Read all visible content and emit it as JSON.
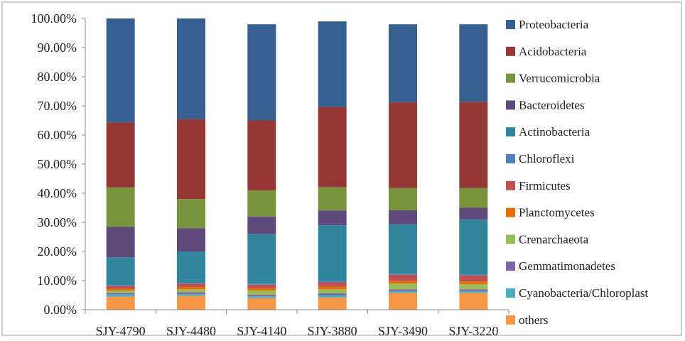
{
  "chart_data": {
    "type": "bar",
    "stacked": true,
    "percent": true,
    "categories": [
      "SJY-4790",
      "SJY-4480",
      "SJY-4140",
      "SJY-3880",
      "SJY-3490",
      "SJY-3220"
    ],
    "ylim": [
      0,
      100
    ],
    "yticks": [
      "0.00%",
      "10.00%",
      "20.00%",
      "30.00%",
      "40.00%",
      "50.00%",
      "60.00%",
      "70.00%",
      "80.00%",
      "90.00%",
      "100.00%"
    ],
    "legend_position": "right",
    "series": [
      {
        "name": "others",
        "color": "#F79646",
        "values": [
          4.5,
          4.8,
          4.0,
          4.2,
          5.8,
          5.8
        ]
      },
      {
        "name": "Cyanobacteria/Chloroplast",
        "color": "#4BACC6",
        "values": [
          0.8,
          0.6,
          0.6,
          0.8,
          0.6,
          0.6
        ]
      },
      {
        "name": "Gemmatimonadetes",
        "color": "#8064A2",
        "values": [
          0.5,
          0.6,
          0.5,
          0.6,
          0.6,
          0.6
        ]
      },
      {
        "name": "Crenarchaeota",
        "color": "#9BBB59",
        "values": [
          0.8,
          1.0,
          1.5,
          1.4,
          2.0,
          1.8
        ]
      },
      {
        "name": "Planctomycetes",
        "color": "#E46C0A",
        "values": [
          0.6,
          0.8,
          0.8,
          0.9,
          0.9,
          0.9
        ]
      },
      {
        "name": "Firmicutes",
        "color": "#C0504D",
        "values": [
          1.0,
          1.2,
          1.2,
          1.5,
          2.1,
          2.1
        ]
      },
      {
        "name": "Chloroflexi",
        "color": "#4F81BD",
        "values": [
          0.3,
          0.2,
          0.4,
          0.4,
          0.4,
          0.4
        ]
      },
      {
        "name": "Actinobacteria",
        "color": "#31859C",
        "values": [
          9.5,
          10.8,
          17.0,
          19.2,
          16.9,
          18.8
        ]
      },
      {
        "name": "Bacteroidetes",
        "color": "#604A7B",
        "values": [
          10.5,
          8.0,
          6.0,
          5.1,
          4.9,
          4.0
        ]
      },
      {
        "name": "Verrucomicrobia",
        "color": "#77933C",
        "values": [
          13.5,
          10.0,
          9.0,
          8.0,
          7.6,
          6.8
        ]
      },
      {
        "name": "Acidobacteria",
        "color": "#953735",
        "values": [
          22.3,
          27.4,
          24.0,
          27.5,
          29.4,
          29.6
        ]
      },
      {
        "name": "Proteobacteria",
        "color": "#376092",
        "values": [
          35.7,
          34.6,
          33.0,
          29.4,
          26.8,
          26.6
        ]
      }
    ],
    "legend_order": [
      "Proteobacteria",
      "Acidobacteria",
      "Verrucomicrobia",
      "Bacteroidetes",
      "Actinobacteria",
      "Chloroflexi",
      "Firmicutes",
      "Planctomycetes",
      "Crenarchaeota",
      "Gemmatimonadetes",
      "Cyanobacteria/Chloroplast",
      "others"
    ]
  }
}
